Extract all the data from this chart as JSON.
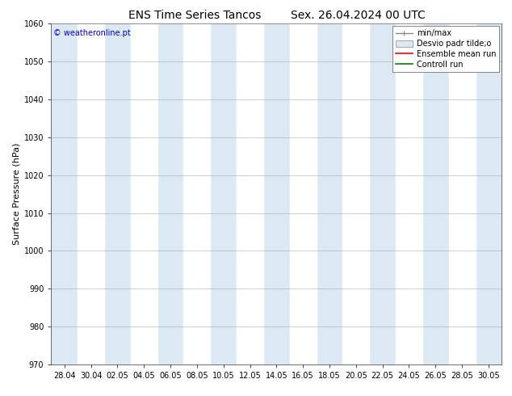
{
  "title1": "ENS Time Series Tancos",
  "title2": "Sex. 26.04.2024 00 UTC",
  "ylabel": "Surface Pressure (hPa)",
  "ylim": [
    970,
    1060
  ],
  "yticks": [
    970,
    980,
    990,
    1000,
    1010,
    1020,
    1030,
    1040,
    1050,
    1060
  ],
  "xtick_labels": [
    "28.04",
    "30.04",
    "02.05",
    "04.05",
    "06.05",
    "08.05",
    "10.05",
    "12.05",
    "14.05",
    "16.05",
    "18.05",
    "20.05",
    "22.05",
    "24.05",
    "26.05",
    "28.05",
    "30.05"
  ],
  "n_xticks": 17,
  "copyright_text": "© weatheronline.pt",
  "copyright_color": "#0000cc",
  "background_color": "#ffffff",
  "plot_bg_color": "#dce9f5",
  "white_band_positions": [
    1,
    3,
    5,
    7,
    9,
    11,
    13,
    15
  ],
  "legend_labels": [
    "min/max",
    "Desvio padr tilde;o",
    "Ensemble mean run",
    "Controll run"
  ],
  "title_fontsize": 10,
  "axis_label_fontsize": 8,
  "tick_fontsize": 7,
  "legend_fontsize": 7
}
